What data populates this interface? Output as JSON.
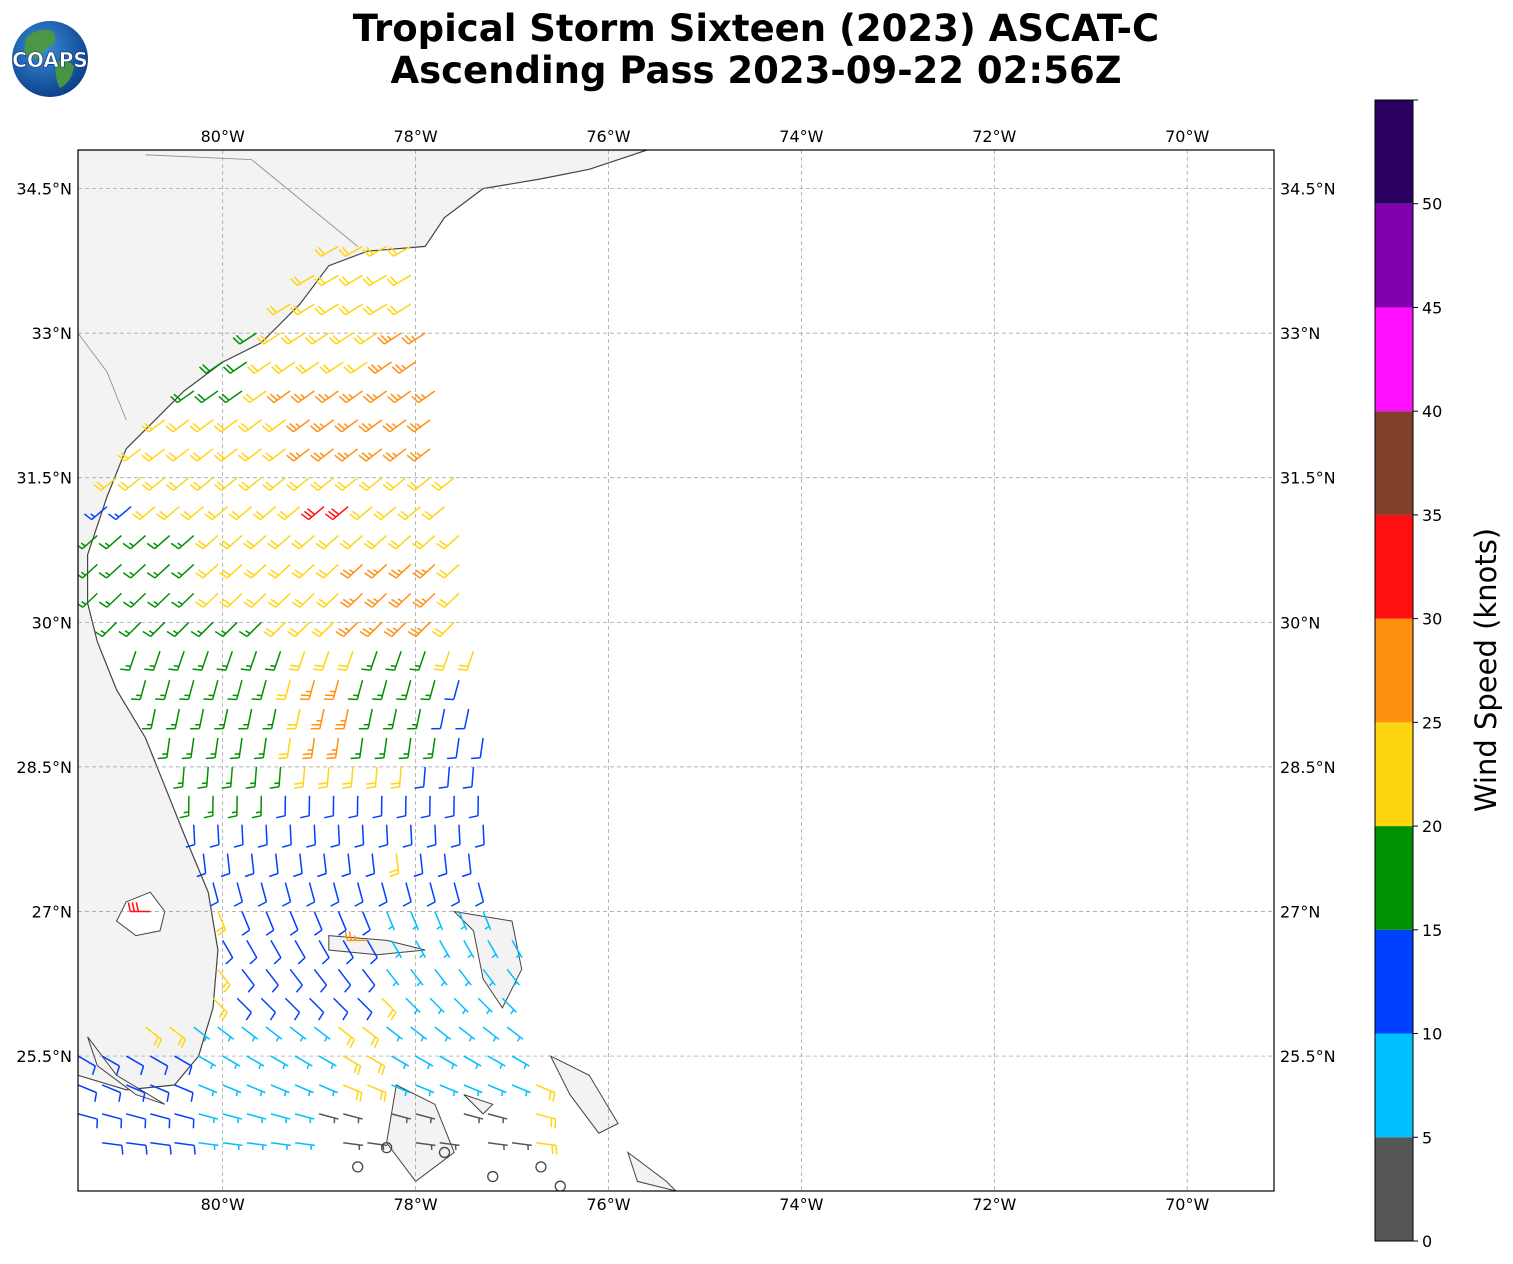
{
  "title": {
    "line1": "Tropical Storm Sixteen (2023) ASCAT-C",
    "line2": "Ascending Pass 2023-09-22 02:56Z"
  },
  "logo": {
    "text": "COAPS",
    "icon": "globe-icon"
  },
  "map": {
    "lon_range": [
      -81.5,
      -69.1
    ],
    "lat_range": [
      24.1,
      34.9
    ],
    "lon_ticks": [
      {
        "value": -80,
        "label": "80°W"
      },
      {
        "value": -78,
        "label": "78°W"
      },
      {
        "value": -76,
        "label": "76°W"
      },
      {
        "value": -74,
        "label": "74°W"
      },
      {
        "value": -72,
        "label": "72°W"
      },
      {
        "value": -70,
        "label": "70°W"
      }
    ],
    "lat_ticks": [
      {
        "value": 34.5,
        "label": "34.5°N"
      },
      {
        "value": 33.0,
        "label": "33°N"
      },
      {
        "value": 31.5,
        "label": "31.5°N"
      },
      {
        "value": 30.0,
        "label": "30°N"
      },
      {
        "value": 28.5,
        "label": "28.5°N"
      },
      {
        "value": 27.0,
        "label": "27°N"
      },
      {
        "value": 25.5,
        "label": "25.5°N"
      }
    ],
    "grid": true,
    "coast_color": "#444444",
    "land_color": "#f3f3f3",
    "wind_barb_unit": "knots",
    "swath": {
      "rows": [
        {
          "lat": 33.9,
          "w": -78.8,
          "e": -77.9
        },
        {
          "lat": 33.3,
          "w": -79.3,
          "e": -77.9
        },
        {
          "lat": 32.7,
          "w": -80.0,
          "e": -77.8
        },
        {
          "lat": 32.1,
          "w": -80.6,
          "e": -77.7
        },
        {
          "lat": 31.5,
          "w": -81.1,
          "e": -77.6
        },
        {
          "lat": 30.9,
          "w": -81.3,
          "e": -77.5
        },
        {
          "lat": 30.3,
          "w": -81.3,
          "e": -77.5
        },
        {
          "lat": 29.7,
          "w": -80.9,
          "e": -77.4
        },
        {
          "lat": 29.1,
          "w": -80.7,
          "e": -77.3
        },
        {
          "lat": 28.5,
          "w": -80.4,
          "e": -77.3
        },
        {
          "lat": 27.9,
          "w": -80.3,
          "e": -77.3
        },
        {
          "lat": 27.3,
          "w": -80.1,
          "e": -77.2
        },
        {
          "lat": 26.7,
          "w": -80.0,
          "e": -77.0
        },
        {
          "lat": 26.1,
          "w": -80.1,
          "e": -76.9
        },
        {
          "lat": 25.5,
          "w": -81.5,
          "e": -76.8
        },
        {
          "lat": 24.9,
          "w": -81.5,
          "e": -76.7
        },
        {
          "lat": 24.3,
          "w": -81.0,
          "e": -76.6
        }
      ],
      "zones": [
        {
          "lat": [
            32.6,
            33.0
          ],
          "lon": [
            -78.3,
            -77.8
          ],
          "speed": 27
        },
        {
          "lat": [
            31.6,
            32.6
          ],
          "lon": [
            -79.3,
            -77.8
          ],
          "speed": 26
        },
        {
          "lat": [
            31.0,
            31.4
          ],
          "lon": [
            -79.0,
            -78.6
          ],
          "speed": 32
        },
        {
          "lat": [
            29.8,
            30.8
          ],
          "lon": [
            -78.6,
            -77.7
          ],
          "speed": 26
        },
        {
          "lat": [
            28.6,
            29.6
          ],
          "lon": [
            -79.1,
            -78.6
          ],
          "speed": 26
        },
        {
          "lat": [
            30.9,
            31.9
          ],
          "lon": [
            -80.1,
            -79.2
          ],
          "speed": 22
        },
        {
          "lat": [
            33.4,
            34.2
          ],
          "lon": [
            -79.0,
            -78.1
          ],
          "speed": 22
        },
        {
          "lat": [
            32.4,
            33.5
          ],
          "lon": [
            -80.4,
            -79.6
          ],
          "speed": 18
        },
        {
          "lat": [
            29.0,
            30.9
          ],
          "lon": [
            -81.3,
            -80.3
          ],
          "speed": 17
        },
        {
          "lat": [
            29.8,
            31.4
          ],
          "lon": [
            -81.3,
            -80.8
          ],
          "speed": 13
        },
        {
          "lat": [
            28.2,
            30.2
          ],
          "lon": [
            -80.8,
            -79.4
          ],
          "speed": 17
        },
        {
          "lat": [
            28.6,
            30.0
          ],
          "lon": [
            -78.6,
            -77.8
          ],
          "speed": 17
        },
        {
          "lat": [
            27.2,
            29.6
          ],
          "lon": [
            -78.1,
            -77.3
          ],
          "speed": 12
        },
        {
          "lat": [
            27.2,
            28.4
          ],
          "lon": [
            -80.3,
            -78.3
          ],
          "speed": 12
        },
        {
          "lat": [
            26.0,
            27.2
          ],
          "lon": [
            -80.0,
            -78.4
          ],
          "speed": 11
        },
        {
          "lat": [
            25.0,
            27.2
          ],
          "lon": [
            -78.3,
            -76.8
          ],
          "speed": 7
        },
        {
          "lat": [
            24.2,
            25.4
          ],
          "lon": [
            -78.0,
            -77.0
          ],
          "speed": 4
        },
        {
          "lat": [
            24.2,
            25.0
          ],
          "lon": [
            -79.0,
            -78.0
          ],
          "speed": 3
        },
        {
          "lat": [
            24.2,
            25.5
          ],
          "lon": [
            -81.5,
            -80.3
          ],
          "speed": 11
        },
        {
          "lat": [
            24.2,
            25.8
          ],
          "lon": [
            -80.3,
            -79.0
          ],
          "speed": 7
        }
      ],
      "default_speed": 21
    },
    "calm_markers": [
      {
        "lat": 24.55,
        "lon": -78.3
      },
      {
        "lat": 24.35,
        "lon": -78.6
      },
      {
        "lat": 24.5,
        "lon": -77.7
      },
      {
        "lat": 24.25,
        "lon": -77.2
      },
      {
        "lat": 24.35,
        "lon": -76.7
      },
      {
        "lat": 24.15,
        "lon": -76.5
      }
    ],
    "isolated_barbs": [
      {
        "lat": 27.0,
        "lon": -80.75,
        "speed": 32,
        "dir": 270
      },
      {
        "lat": 26.7,
        "lon": -78.5,
        "speed": 27,
        "dir": 270
      }
    ]
  },
  "colorbar": {
    "label": "Wind Speed (knots)",
    "ticks": [
      "0",
      "5",
      "10",
      "15",
      "20",
      "25",
      "30",
      "35",
      "40",
      "45",
      "50"
    ],
    "bins": [
      {
        "from": 0,
        "to": 5,
        "color": "#565656"
      },
      {
        "from": 5,
        "to": 10,
        "color": "#00bfff"
      },
      {
        "from": 10,
        "to": 15,
        "color": "#0040ff"
      },
      {
        "from": 15,
        "to": 20,
        "color": "#009000"
      },
      {
        "from": 20,
        "to": 25,
        "color": "#ffd510"
      },
      {
        "from": 25,
        "to": 30,
        "color": "#ff9010"
      },
      {
        "from": 30,
        "to": 35,
        "color": "#ff1010"
      },
      {
        "from": 35,
        "to": 40,
        "color": "#80402a"
      },
      {
        "from": 40,
        "to": 45,
        "color": "#ff10ff"
      },
      {
        "from": 45,
        "to": 50,
        "color": "#8000b0"
      },
      {
        "from": 50,
        "to": 55,
        "color": "#2a0060"
      }
    ]
  }
}
